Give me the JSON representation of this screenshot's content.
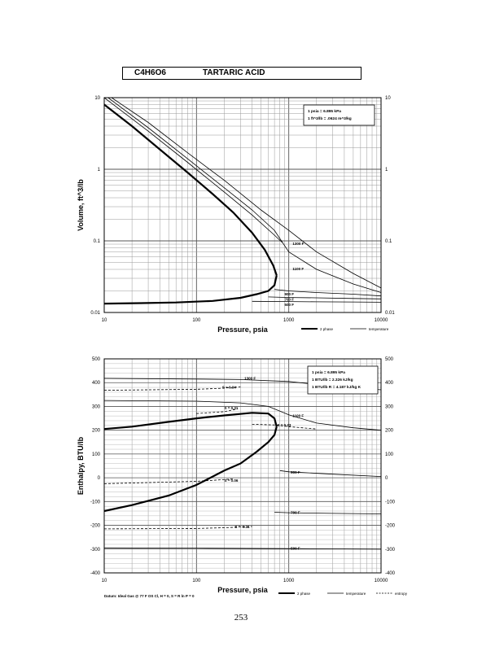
{
  "header": {
    "formula": "C4H6O6",
    "name": "TARTARIC ACID"
  },
  "page_number": "253",
  "chart_data": [
    {
      "type": "line",
      "title": "",
      "xlabel": "Pressure, psia",
      "ylabel": "Volume, ft^3/lb",
      "x_scale": "log",
      "y_scale": "log",
      "xlim": [
        10,
        10000
      ],
      "ylim": [
        0.01,
        10
      ],
      "x_ticks": [
        10,
        100,
        1000,
        10000
      ],
      "x_tick_labels": [
        "10",
        "100",
        "1000",
        "10000"
      ],
      "y_ticks": [
        0.01,
        0.1,
        1,
        10
      ],
      "y_tick_labels": [
        "0.01",
        "0.1",
        "1",
        "10"
      ],
      "grid": true,
      "legend": [
        {
          "label": "2 phase",
          "style": "thick"
        },
        {
          "label": "temperature",
          "style": "thin"
        }
      ],
      "note_lines": [
        "1 psia = 6.895 kPa",
        "1 ft^3/lb = .0624 m^3/kg"
      ],
      "annotations": [
        "1300 F",
        "1100 F",
        "900 F",
        "700 F",
        "500 F"
      ],
      "series": [
        {
          "kind": "two_phase",
          "x": [
            10,
            20,
            40,
            80,
            150,
            250,
            400,
            550,
            680,
            740
          ],
          "y": [
            8,
            4,
            1.9,
            0.9,
            0.45,
            0.25,
            0.13,
            0.075,
            0.045,
            0.033
          ]
        },
        {
          "kind": "two_phase",
          "x": [
            740,
            700,
            600,
            450,
            300,
            150,
            60,
            25,
            10
          ],
          "y": [
            0.033,
            0.024,
            0.02,
            0.018,
            0.016,
            0.0145,
            0.0138,
            0.0135,
            0.0133
          ]
        },
        {
          "kind": "temperature",
          "label": "1300 F",
          "x": [
            12,
            30,
            80,
            200,
            500,
            1000,
            2000,
            5000,
            10000
          ],
          "y": [
            10,
            4.5,
            1.7,
            0.7,
            0.27,
            0.14,
            0.07,
            0.035,
            0.022
          ]
        },
        {
          "kind": "temperature",
          "label": "1100 F",
          "x": [
            11,
            30,
            80,
            200,
            400,
            700,
            1000,
            2000,
            5000,
            10000
          ],
          "y": [
            10,
            3.8,
            1.4,
            0.55,
            0.27,
            0.14,
            0.07,
            0.04,
            0.025,
            0.019
          ]
        },
        {
          "kind": "temperature",
          "label": "",
          "x": [
            10,
            30,
            80,
            200,
            400,
            700,
            850
          ],
          "y": [
            10,
            3.4,
            1.25,
            0.48,
            0.23,
            0.12,
            0.095
          ]
        },
        {
          "kind": "temperature",
          "label": "900 F",
          "x": [
            700,
            1000,
            2000,
            5000,
            10000
          ],
          "y": [
            0.021,
            0.02,
            0.019,
            0.018,
            0.017
          ]
        },
        {
          "kind": "temperature",
          "label": "700 F",
          "x": [
            600,
            1000,
            2000,
            5000,
            10000
          ],
          "y": [
            0.0165,
            0.0162,
            0.016,
            0.0157,
            0.0155
          ]
        },
        {
          "kind": "temperature",
          "label": "500 F",
          "x": [
            400,
            1000,
            2000,
            5000,
            10000
          ],
          "y": [
            0.0143,
            0.0142,
            0.0141,
            0.014,
            0.0139
          ]
        }
      ]
    },
    {
      "type": "line",
      "title": "",
      "xlabel": "Pressure, psia",
      "ylabel": "Enthalpy, BTU/lb",
      "x_scale": "log",
      "y_scale": "linear",
      "xlim": [
        10,
        10000
      ],
      "ylim": [
        -400,
        500
      ],
      "x_ticks": [
        10,
        100,
        1000,
        10000
      ],
      "x_tick_labels": [
        "10",
        "100",
        "1000",
        "10000"
      ],
      "y_ticks": [
        -400,
        -300,
        -200,
        -100,
        0,
        100,
        200,
        300,
        400,
        500
      ],
      "y_tick_labels": [
        "-400",
        "-300",
        "-200",
        "-100",
        "0",
        "100",
        "200",
        "300",
        "400",
        "500"
      ],
      "grid": true,
      "legend": [
        {
          "label": "2 phase",
          "style": "thick"
        },
        {
          "label": "temperature",
          "style": "thin"
        },
        {
          "label": "entropy",
          "style": "dashed"
        }
      ],
      "note_lines": [
        "1 psia = 6.895 kPa",
        "1 BTU/lb = 2.326 kJ/kg",
        "1 BTU/lb R = 4.187 kJ/kg K"
      ],
      "footnote": "Datum: Ideal Gas @ 77 F OS Cl, H = 0, S = R ln P = 0",
      "annotations": [
        "1300 F",
        "1100 F",
        "900 F",
        "700 F",
        "500 F",
        "S = 0.34",
        "S = 0.31",
        "S = 0.23",
        "S = 0.06",
        "S = -0.11"
      ],
      "series": [
        {
          "kind": "two_phase",
          "x": [
            10,
            20,
            50,
            100,
            200,
            400,
            600,
            700,
            740
          ],
          "y": [
            205,
            215,
            235,
            250,
            262,
            273,
            270,
            250,
            215
          ]
        },
        {
          "kind": "two_phase",
          "x": [
            740,
            700,
            600,
            450,
            300,
            200,
            100,
            50,
            20,
            10
          ],
          "y": [
            215,
            180,
            150,
            110,
            60,
            30,
            -30,
            -75,
            -115,
            -140
          ]
        },
        {
          "kind": "temperature",
          "label": "1300 F",
          "x": [
            10,
            100,
            300,
            1000,
            3000,
            10000
          ],
          "y": [
            418,
            415,
            413,
            405,
            385,
            370
          ]
        },
        {
          "kind": "temperature",
          "label": "1100 F",
          "x": [
            10,
            100,
            300,
            600,
            1000,
            2000,
            5000,
            10000
          ],
          "y": [
            325,
            322,
            315,
            300,
            265,
            230,
            210,
            200
          ]
        },
        {
          "kind": "temperature",
          "label": "900 F",
          "x": [
            800,
            1000,
            3000,
            10000
          ],
          "y": [
            30,
            25,
            15,
            5
          ]
        },
        {
          "kind": "temperature",
          "label": "700 F",
          "x": [
            700,
            1000,
            3000,
            10000
          ],
          "y": [
            -145,
            -147,
            -150,
            -152
          ]
        },
        {
          "kind": "temperature",
          "label": "500 F",
          "x": [
            10,
            100,
            1000,
            10000
          ],
          "y": [
            -295,
            -296,
            -298,
            -300
          ]
        },
        {
          "kind": "entropy",
          "label": "S = 0.34",
          "x": [
            10,
            100,
            180,
            300
          ],
          "y": [
            368,
            372,
            376,
            382
          ]
        },
        {
          "kind": "entropy",
          "label": "S = 0.31",
          "x": [
            100,
            200,
            280
          ],
          "y": [
            270,
            278,
            290
          ]
        },
        {
          "kind": "entropy",
          "label": "S = 0.23",
          "x": [
            400,
            700,
            1000,
            2000
          ],
          "y": [
            225,
            222,
            215,
            205
          ]
        },
        {
          "kind": "entropy",
          "label": "S = 0.06",
          "x": [
            10,
            100,
            250
          ],
          "y": [
            -25,
            -15,
            -5
          ]
        },
        {
          "kind": "entropy",
          "label": "S = -0.11",
          "x": [
            10,
            100,
            200,
            400
          ],
          "y": [
            -215,
            -213,
            -210,
            -205
          ]
        }
      ]
    }
  ]
}
